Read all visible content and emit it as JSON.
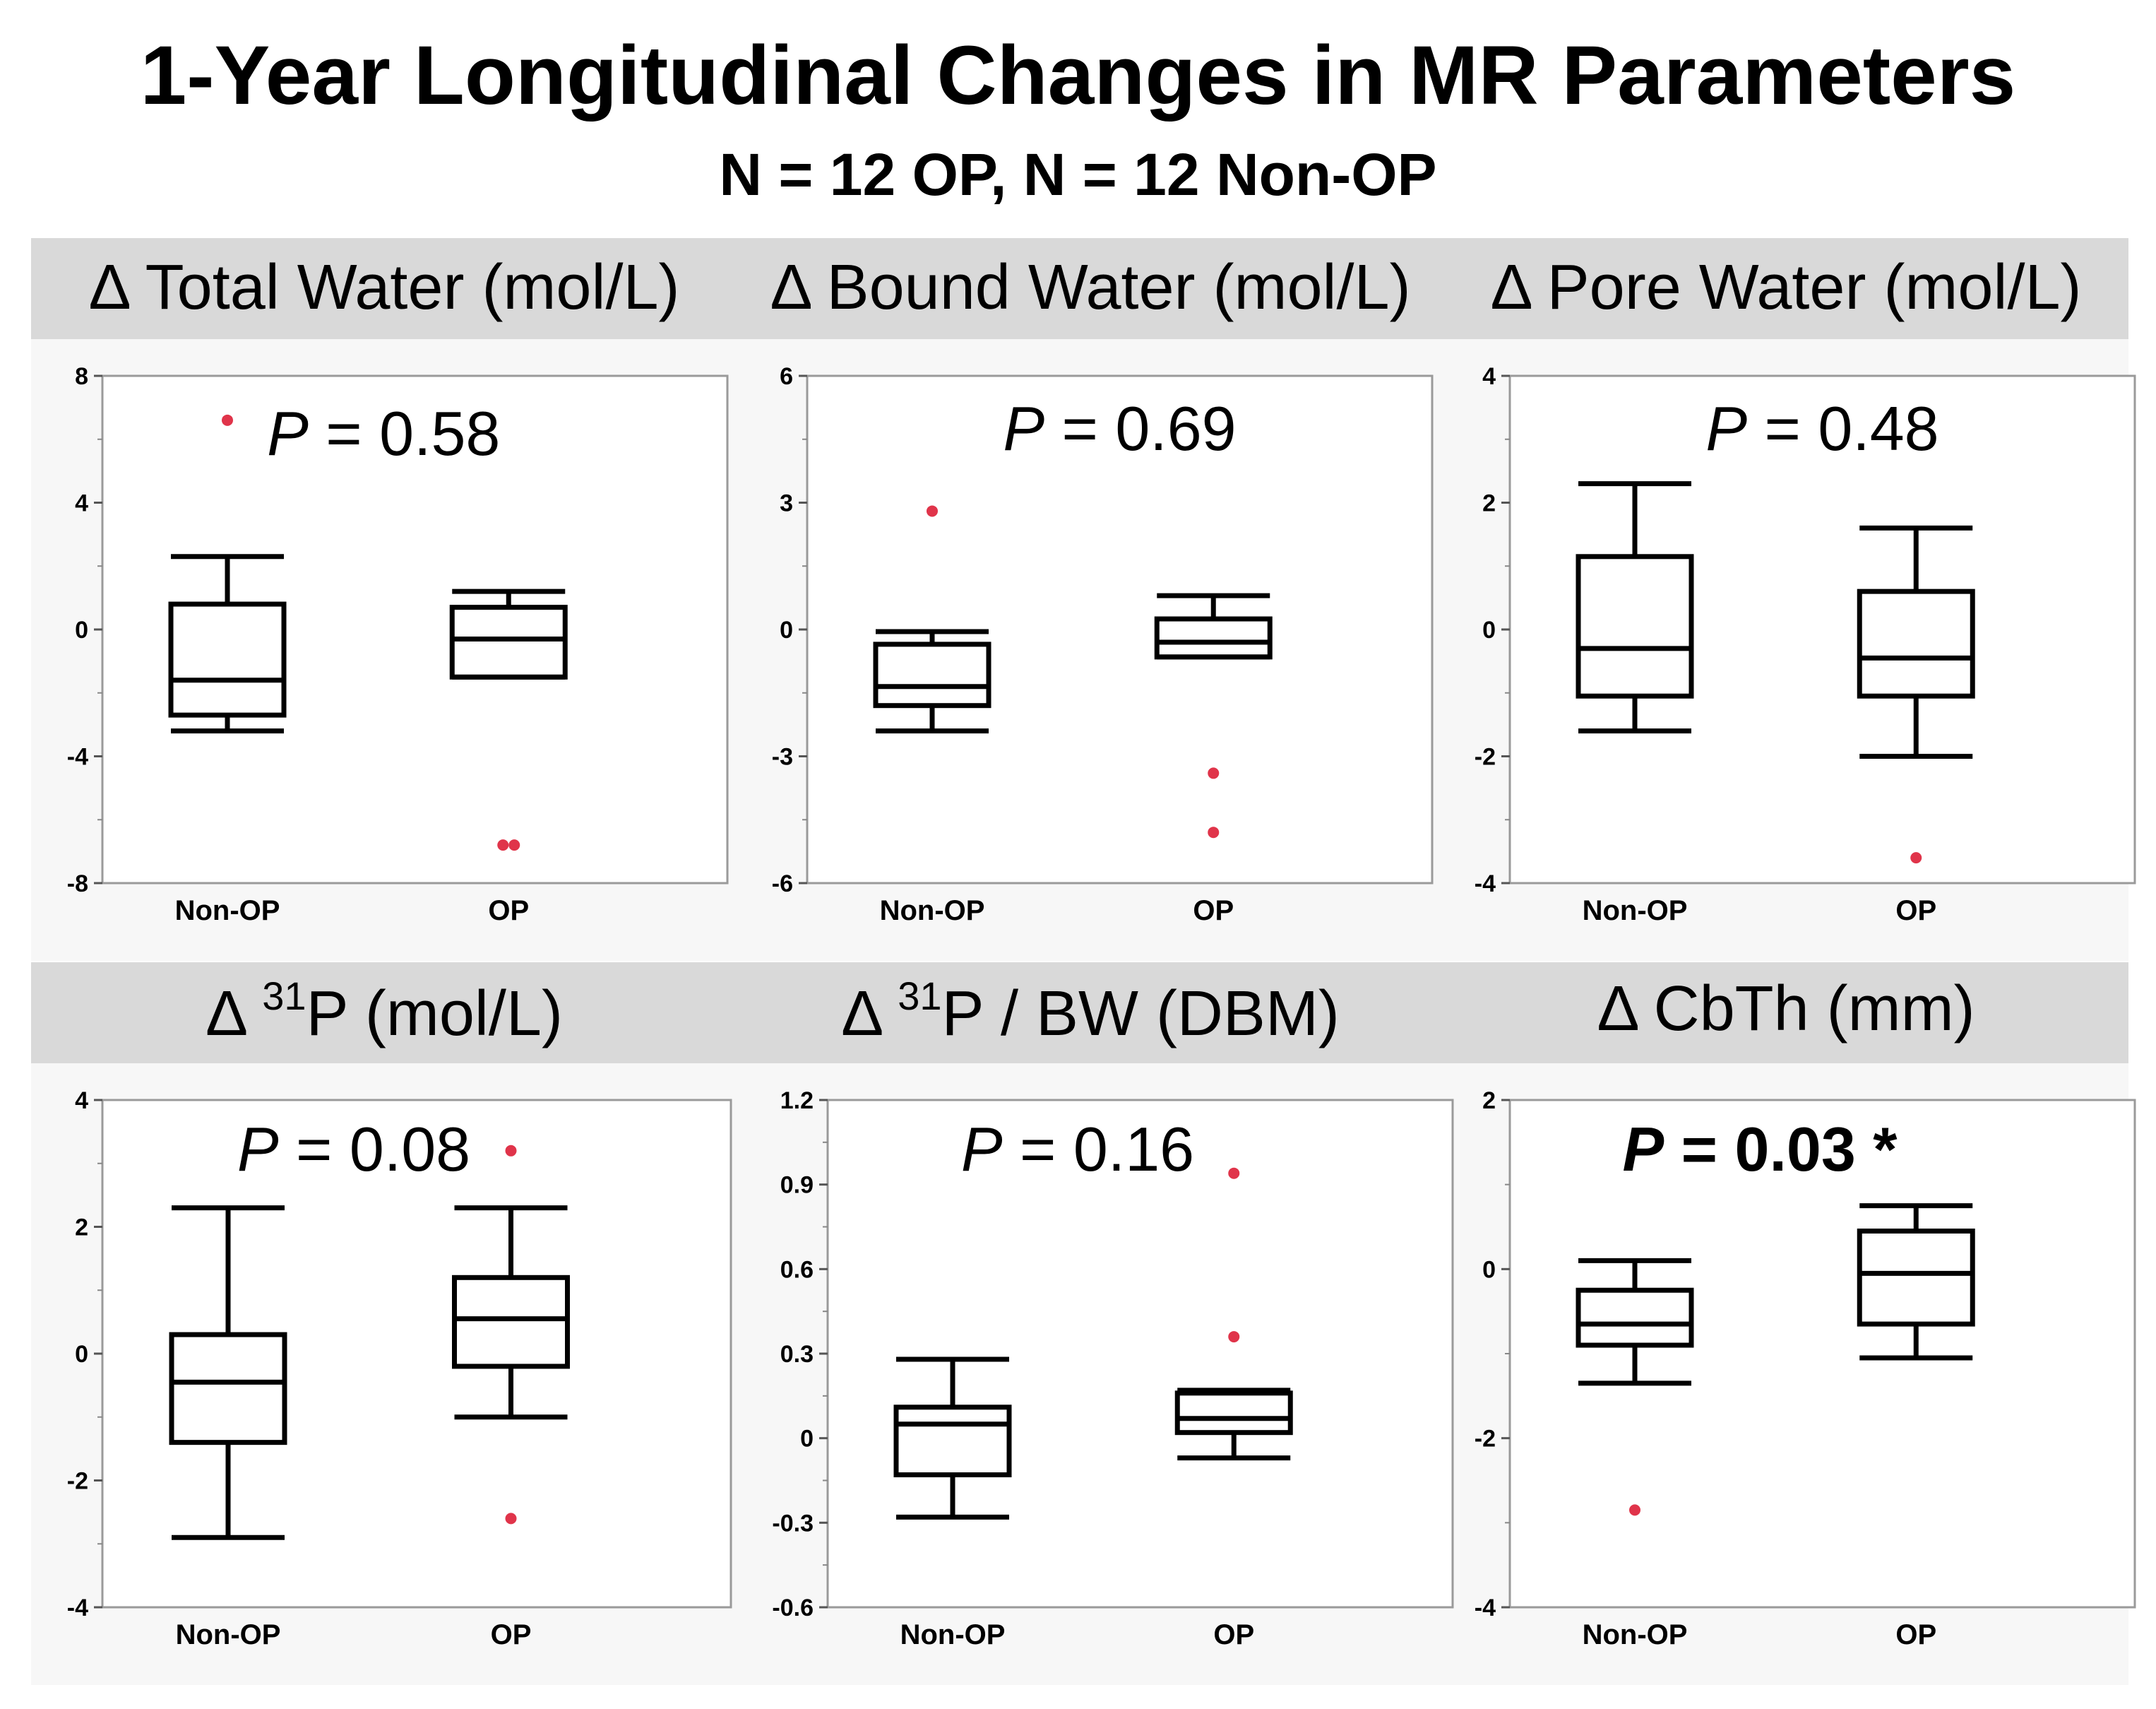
{
  "title": "1-Year Longitudinal Changes in MR Parameters",
  "subtitle": "N = 12 OP, N = 12 Non-OP",
  "colors": {
    "outlier": "#e0344a",
    "box": "#000000",
    "header_band": "#d9d9d9",
    "panel_bg": "#f7f7f7"
  },
  "chart_data": [
    {
      "type": "box",
      "title": "Δ Total Water (mol/L)",
      "categories": [
        "Non-OP",
        "OP"
      ],
      "ylim": [
        -8,
        8
      ],
      "yticks": [
        "8",
        "4",
        "0",
        "-4",
        "-8"
      ],
      "ytick_values": [
        8,
        4,
        0,
        -4,
        -8
      ],
      "p_label": "P",
      "p_value": " = 0.58",
      "p_bold": false,
      "boxes": [
        {
          "category": "Non-OP",
          "whisker_low": -3.2,
          "q1": -2.7,
          "median": -1.6,
          "q3": 0.8,
          "whisker_high": 2.3,
          "outliers": [
            6.6
          ]
        },
        {
          "category": "OP",
          "whisker_low": -1.5,
          "q1": -1.5,
          "median": -0.3,
          "q3": 0.7,
          "whisker_high": 1.2,
          "outliers": [
            -6.8,
            -6.8
          ]
        }
      ]
    },
    {
      "type": "box",
      "title": "Δ Bound Water (mol/L)",
      "categories": [
        "Non-OP",
        "OP"
      ],
      "ylim": [
        -6,
        6
      ],
      "yticks": [
        "6",
        "3",
        "0",
        "-3",
        "-6"
      ],
      "ytick_values": [
        6,
        3,
        0,
        -3,
        -6
      ],
      "p_label": "P",
      "p_value": " = 0.69",
      "p_bold": false,
      "boxes": [
        {
          "category": "Non-OP",
          "whisker_low": -2.4,
          "q1": -1.8,
          "median": -1.35,
          "q3": -0.35,
          "whisker_high": -0.05,
          "outliers": [
            2.8
          ]
        },
        {
          "category": "OP",
          "whisker_low": -0.65,
          "q1": -0.65,
          "median": -0.3,
          "q3": 0.25,
          "whisker_high": 0.8,
          "outliers": [
            -3.4,
            -4.8
          ]
        }
      ]
    },
    {
      "type": "box",
      "title": "Δ Pore Water (mol/L)",
      "categories": [
        "Non-OP",
        "OP"
      ],
      "ylim": [
        -4,
        4
      ],
      "yticks": [
        "4",
        "2",
        "0",
        "-2",
        "-4"
      ],
      "ytick_values": [
        4,
        2,
        0,
        -2,
        -4
      ],
      "p_label": "P",
      "p_value": " = 0.48",
      "p_bold": false,
      "boxes": [
        {
          "category": "Non-OP",
          "whisker_low": -1.6,
          "q1": -1.05,
          "median": -0.3,
          "q3": 1.15,
          "whisker_high": 2.3,
          "outliers": []
        },
        {
          "category": "OP",
          "whisker_low": -2.0,
          "q1": -1.05,
          "median": -0.45,
          "q3": 0.6,
          "whisker_high": 1.6,
          "outliers": [
            -3.6
          ]
        }
      ]
    },
    {
      "type": "box",
      "title": "Δ ",
      "title_sup": "31",
      "title_rest": "P (mol/L)",
      "categories": [
        "Non-OP",
        "OP"
      ],
      "ylim": [
        -4,
        4
      ],
      "yticks": [
        "4",
        "2",
        "0",
        "-2",
        "-4"
      ],
      "ytick_values": [
        4,
        2,
        0,
        -2,
        -4
      ],
      "p_label": "P",
      "p_value": " = 0.08",
      "p_bold": false,
      "boxes": [
        {
          "category": "Non-OP",
          "whisker_low": -2.9,
          "q1": -1.4,
          "median": -0.45,
          "q3": 0.3,
          "whisker_high": 2.3,
          "outliers": []
        },
        {
          "category": "OP",
          "whisker_low": -1.0,
          "q1": -0.2,
          "median": 0.55,
          "q3": 1.2,
          "whisker_high": 2.3,
          "outliers": [
            3.2,
            -2.6
          ]
        }
      ]
    },
    {
      "type": "box",
      "title": "Δ ",
      "title_sup": "31",
      "title_rest": "P / BW (DBM)",
      "categories": [
        "Non-OP",
        "OP"
      ],
      "ylim": [
        -0.6,
        1.2
      ],
      "yticks": [
        "1.2",
        "0.9",
        "0.6",
        "0.3",
        "0",
        "-0.3",
        "-0.6"
      ],
      "ytick_values": [
        1.2,
        0.9,
        0.6,
        0.3,
        0,
        -0.3,
        -0.6
      ],
      "p_label": "P",
      "p_value": " = 0.16",
      "p_bold": false,
      "boxes": [
        {
          "category": "Non-OP",
          "whisker_low": -0.28,
          "q1": -0.13,
          "median": 0.05,
          "q3": 0.11,
          "whisker_high": 0.28,
          "outliers": []
        },
        {
          "category": "OP",
          "whisker_low": -0.07,
          "q1": 0.02,
          "median": 0.07,
          "q3": 0.16,
          "whisker_high": 0.17,
          "outliers": [
            0.94,
            0.36
          ]
        }
      ]
    },
    {
      "type": "box",
      "title": "Δ CbTh (mm)",
      "categories": [
        "Non-OP",
        "OP"
      ],
      "ylim": [
        -4,
        2
      ],
      "yticks": [
        "2",
        "0",
        "-2",
        "-4"
      ],
      "ytick_values": [
        2,
        0,
        -2,
        -4
      ],
      "p_label": "P",
      "p_value": " = 0.03 *",
      "p_bold": true,
      "boxes": [
        {
          "category": "Non-OP",
          "whisker_low": -1.35,
          "q1": -0.9,
          "median": -0.65,
          "q3": -0.25,
          "whisker_high": 0.1,
          "outliers": [
            -2.85
          ]
        },
        {
          "category": "OP",
          "whisker_low": -1.05,
          "q1": -0.65,
          "median": -0.05,
          "q3": 0.45,
          "whisker_high": 0.75,
          "outliers": []
        }
      ]
    }
  ]
}
